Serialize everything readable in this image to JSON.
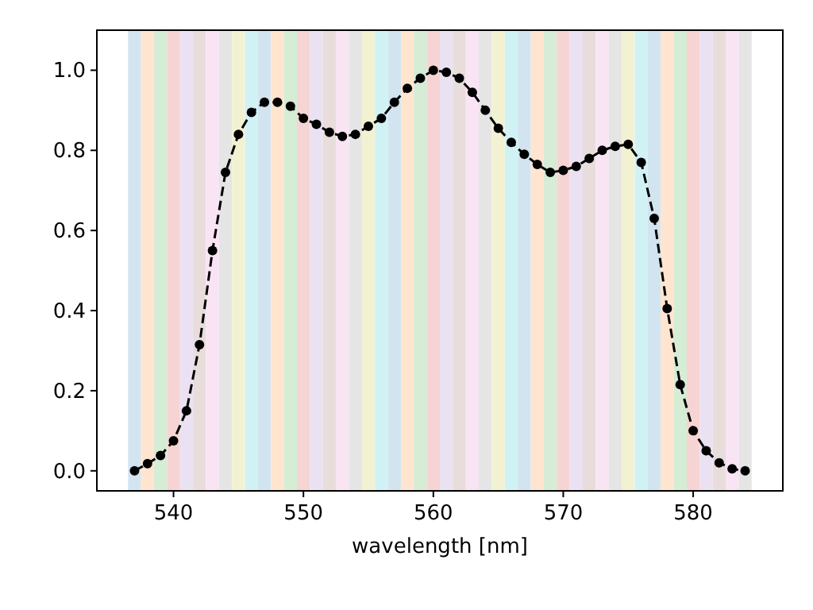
{
  "chart_data": {
    "type": "line",
    "xlabel": "wavelength [nm]",
    "x": [
      537,
      538,
      539,
      540,
      541,
      542,
      543,
      544,
      545,
      546,
      547,
      548,
      549,
      550,
      551,
      552,
      553,
      554,
      555,
      556,
      557,
      558,
      559,
      560,
      561,
      562,
      563,
      564,
      565,
      566,
      567,
      568,
      569,
      570,
      571,
      572,
      573,
      574,
      575,
      576,
      577,
      578,
      579,
      580,
      581,
      582,
      583,
      584
    ],
    "series": [
      {
        "color": "#000000",
        "values": [
          0.0,
          0.018,
          0.038,
          0.075,
          0.15,
          0.315,
          0.55,
          0.745,
          0.84,
          0.895,
          0.92,
          0.92,
          0.91,
          0.88,
          0.865,
          0.845,
          0.835,
          0.84,
          0.86,
          0.88,
          0.92,
          0.955,
          0.98,
          1.0,
          0.995,
          0.98,
          0.945,
          0.9,
          0.855,
          0.82,
          0.79,
          0.765,
          0.745,
          0.75,
          0.76,
          0.78,
          0.8,
          0.81,
          0.815,
          0.77,
          0.63,
          0.405,
          0.215,
          0.1,
          0.05,
          0.02,
          0.005,
          0.0
        ]
      }
    ],
    "marker": "circle",
    "line_style": "dashed",
    "grid": false,
    "xlim": [
      534.1,
      586.9
    ],
    "xticks": [
      540,
      550,
      560,
      570,
      580
    ],
    "ylim": [
      -0.05,
      1.1
    ],
    "yticks": [
      {
        "value": 0,
        "label": "0.0"
      },
      {
        "value": 0.2,
        "label": "0.2"
      },
      {
        "value": 0.4,
        "label": "0.4"
      },
      {
        "value": 0.6,
        "label": "0.6"
      },
      {
        "value": 0.8,
        "label": "0.8"
      },
      {
        "value": 1,
        "label": "1.0"
      }
    ],
    "bands": [
      {
        "axis": "x",
        "from": 536.5,
        "to": 537.5,
        "color": "#d2e4f0"
      },
      {
        "axis": "x",
        "from": 537.5,
        "to": 538.5,
        "color": "#ffe5cf"
      },
      {
        "axis": "x",
        "from": 538.5,
        "to": 539.5,
        "color": "#d5ecd5"
      },
      {
        "axis": "x",
        "from": 539.5,
        "to": 540.5,
        "color": "#f7d4d4"
      },
      {
        "axis": "x",
        "from": 540.5,
        "to": 541.5,
        "color": "#eae1f2"
      },
      {
        "axis": "x",
        "from": 541.5,
        "to": 542.5,
        "color": "#e8dddb"
      },
      {
        "axis": "x",
        "from": 542.5,
        "to": 543.5,
        "color": "#f9e4f3"
      },
      {
        "axis": "x",
        "from": 543.5,
        "to": 544.5,
        "color": "#e5e5e5"
      },
      {
        "axis": "x",
        "from": 544.5,
        "to": 545.5,
        "color": "#f2f2d3"
      },
      {
        "axis": "x",
        "from": 545.5,
        "to": 546.5,
        "color": "#d1f2f5"
      },
      {
        "axis": "x",
        "from": 546.5,
        "to": 547.5,
        "color": "#d2e4f0"
      },
      {
        "axis": "x",
        "from": 547.5,
        "to": 548.5,
        "color": "#ffe5cf"
      },
      {
        "axis": "x",
        "from": 548.5,
        "to": 549.5,
        "color": "#d5ecd5"
      },
      {
        "axis": "x",
        "from": 549.5,
        "to": 550.5,
        "color": "#f7d4d4"
      },
      {
        "axis": "x",
        "from": 550.5,
        "to": 551.5,
        "color": "#eae1f2"
      },
      {
        "axis": "x",
        "from": 551.5,
        "to": 552.5,
        "color": "#e8dddb"
      },
      {
        "axis": "x",
        "from": 552.5,
        "to": 553.5,
        "color": "#f9e4f3"
      },
      {
        "axis": "x",
        "from": 553.5,
        "to": 554.5,
        "color": "#e5e5e5"
      },
      {
        "axis": "x",
        "from": 554.5,
        "to": 555.5,
        "color": "#f2f2d3"
      },
      {
        "axis": "x",
        "from": 555.5,
        "to": 556.5,
        "color": "#d1f2f5"
      },
      {
        "axis": "x",
        "from": 556.5,
        "to": 557.5,
        "color": "#d2e4f0"
      },
      {
        "axis": "x",
        "from": 557.5,
        "to": 558.5,
        "color": "#ffe5cf"
      },
      {
        "axis": "x",
        "from": 558.5,
        "to": 559.5,
        "color": "#d5ecd5"
      },
      {
        "axis": "x",
        "from": 559.5,
        "to": 560.5,
        "color": "#f7d4d4"
      },
      {
        "axis": "x",
        "from": 560.5,
        "to": 561.5,
        "color": "#eae1f2"
      },
      {
        "axis": "x",
        "from": 561.5,
        "to": 562.5,
        "color": "#e8dddb"
      },
      {
        "axis": "x",
        "from": 562.5,
        "to": 563.5,
        "color": "#f9e4f3"
      },
      {
        "axis": "x",
        "from": 563.5,
        "to": 564.5,
        "color": "#e5e5e5"
      },
      {
        "axis": "x",
        "from": 564.5,
        "to": 565.5,
        "color": "#f2f2d3"
      },
      {
        "axis": "x",
        "from": 565.5,
        "to": 566.5,
        "color": "#d1f2f5"
      },
      {
        "axis": "x",
        "from": 566.5,
        "to": 567.5,
        "color": "#d2e4f0"
      },
      {
        "axis": "x",
        "from": 567.5,
        "to": 568.5,
        "color": "#ffe5cf"
      },
      {
        "axis": "x",
        "from": 568.5,
        "to": 569.5,
        "color": "#d5ecd5"
      },
      {
        "axis": "x",
        "from": 569.5,
        "to": 570.5,
        "color": "#f7d4d4"
      },
      {
        "axis": "x",
        "from": 570.5,
        "to": 571.5,
        "color": "#eae1f2"
      },
      {
        "axis": "x",
        "from": 571.5,
        "to": 572.5,
        "color": "#e8dddb"
      },
      {
        "axis": "x",
        "from": 572.5,
        "to": 573.5,
        "color": "#f9e4f3"
      },
      {
        "axis": "x",
        "from": 573.5,
        "to": 574.5,
        "color": "#e5e5e5"
      },
      {
        "axis": "x",
        "from": 574.5,
        "to": 575.5,
        "color": "#f2f2d3"
      },
      {
        "axis": "x",
        "from": 575.5,
        "to": 576.5,
        "color": "#d1f2f5"
      },
      {
        "axis": "x",
        "from": 576.5,
        "to": 577.5,
        "color": "#d2e4f0"
      },
      {
        "axis": "x",
        "from": 577.5,
        "to": 578.5,
        "color": "#ffe5cf"
      },
      {
        "axis": "x",
        "from": 578.5,
        "to": 579.5,
        "color": "#d5ecd5"
      },
      {
        "axis": "x",
        "from": 579.5,
        "to": 580.5,
        "color": "#f7d4d4"
      },
      {
        "axis": "x",
        "from": 580.5,
        "to": 581.5,
        "color": "#eae1f2"
      },
      {
        "axis": "x",
        "from": 581.5,
        "to": 582.5,
        "color": "#e8dddb"
      },
      {
        "axis": "x",
        "from": 582.5,
        "to": 583.5,
        "color": "#f9e4f3"
      },
      {
        "axis": "x",
        "from": 583.5,
        "to": 584.5,
        "color": "#e5e5e5"
      }
    ]
  }
}
